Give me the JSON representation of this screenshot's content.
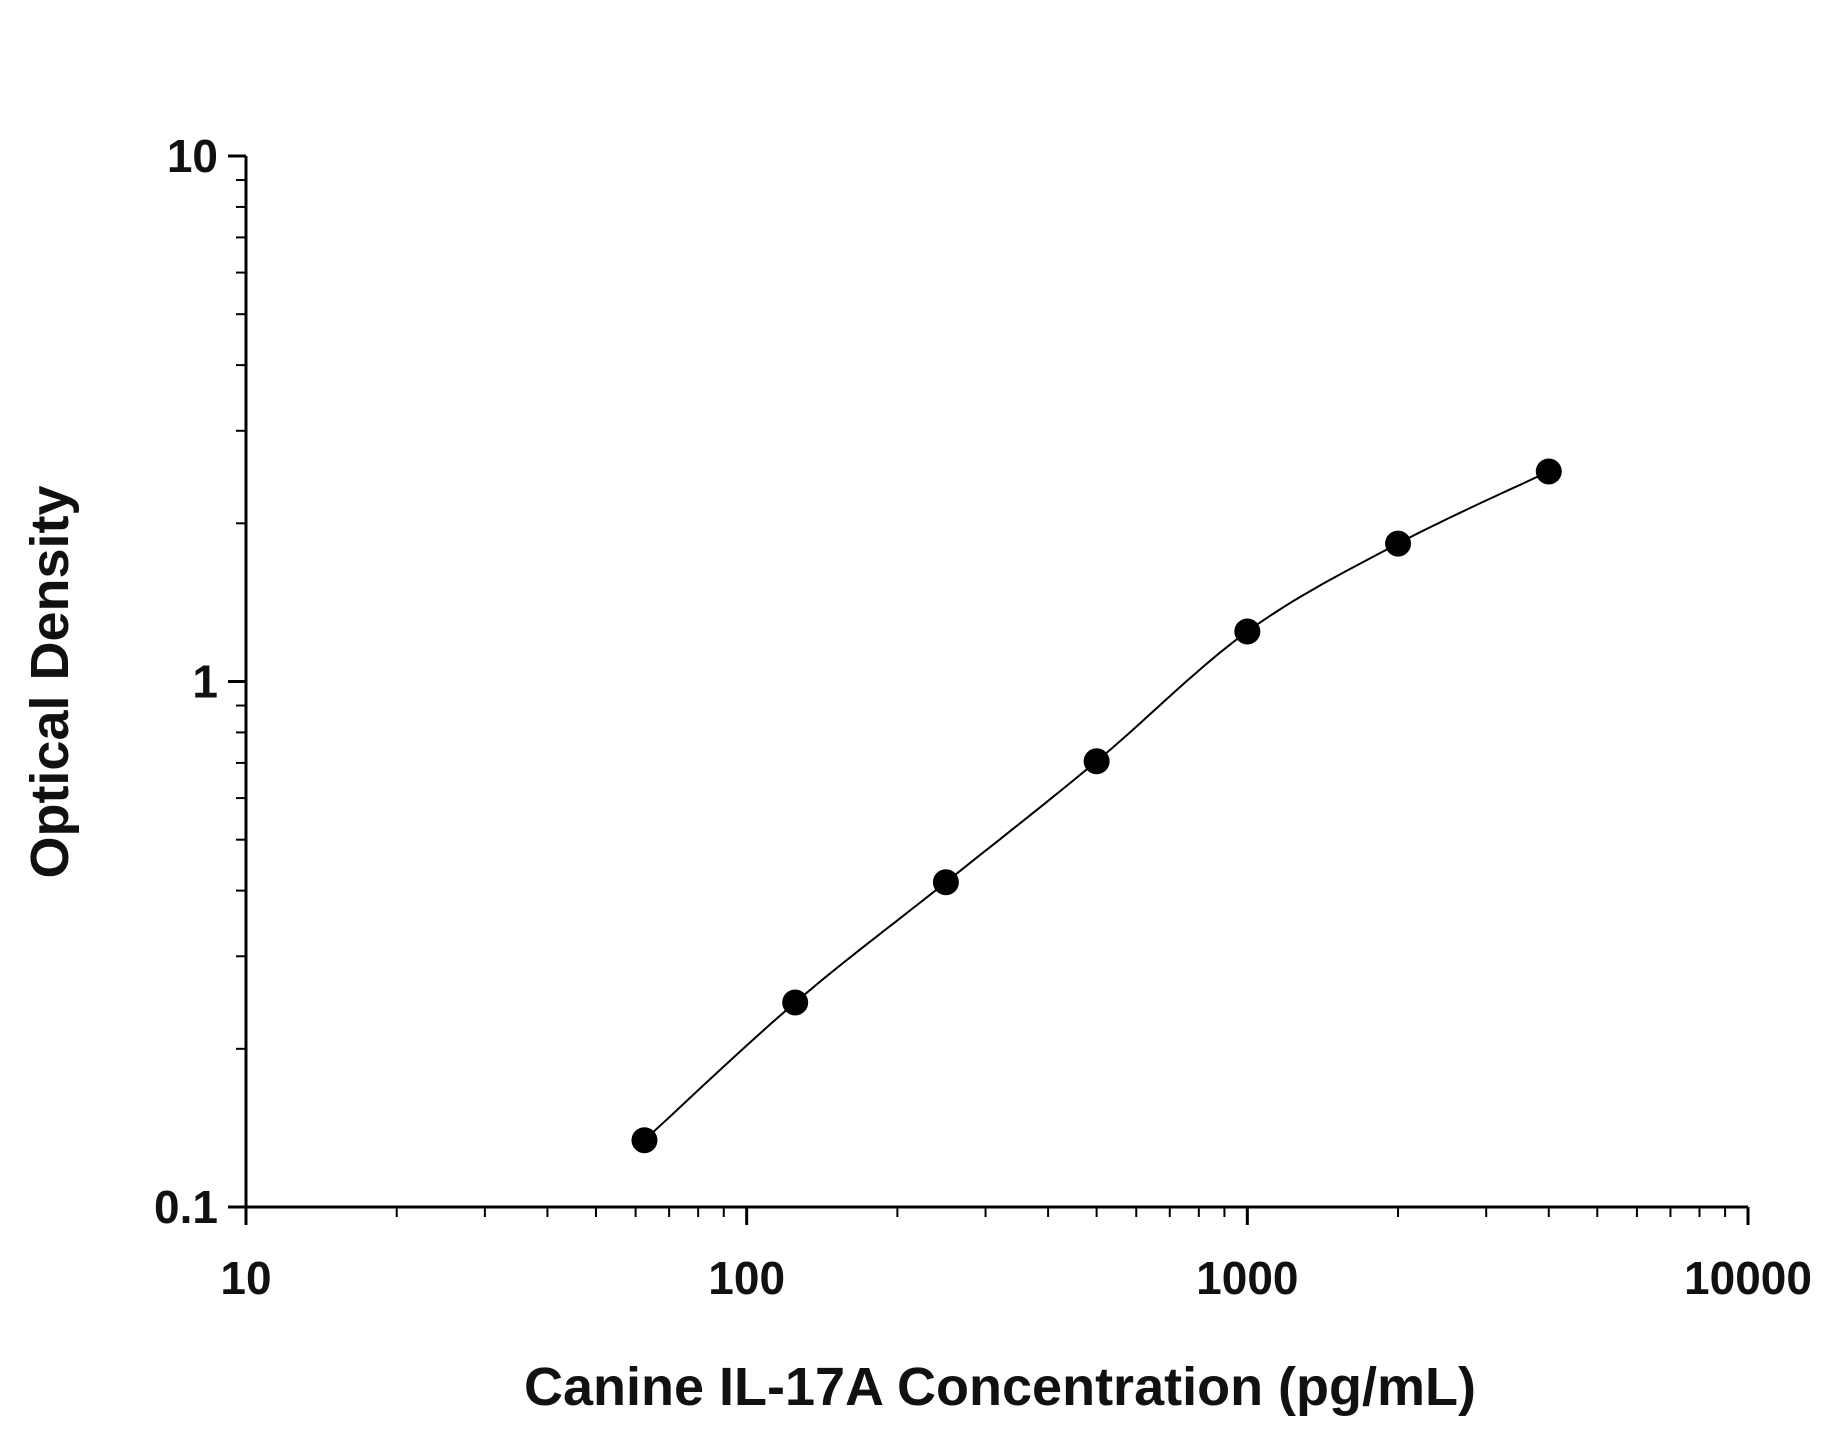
{
  "chart_data": {
    "type": "scatter",
    "title": "",
    "xlabel": "Canine IL-17A Concentration (pg/mL)",
    "ylabel": "Optical Density",
    "x_scale": "log",
    "y_scale": "log",
    "xlim": [
      10,
      10000
    ],
    "ylim": [
      0.1,
      10
    ],
    "x_ticks": [
      10,
      100,
      1000,
      10000
    ],
    "x_tick_labels": [
      "10",
      "100",
      "1000",
      "10000"
    ],
    "y_ticks": [
      0.1,
      1,
      10
    ],
    "y_tick_labels": [
      "0.1",
      "1",
      "10"
    ],
    "grid": false,
    "legend": "none",
    "series": [
      {
        "x": [
          62.5,
          125,
          250,
          500,
          1000,
          2000,
          4000
        ],
        "y": [
          0.134,
          0.245,
          0.415,
          0.705,
          1.245,
          1.83,
          2.51
        ],
        "marker": "filled-circle",
        "fit_curve": true
      }
    ],
    "colors": {
      "marker": "#000000",
      "curve": "#000000",
      "axis": "#000000"
    }
  }
}
